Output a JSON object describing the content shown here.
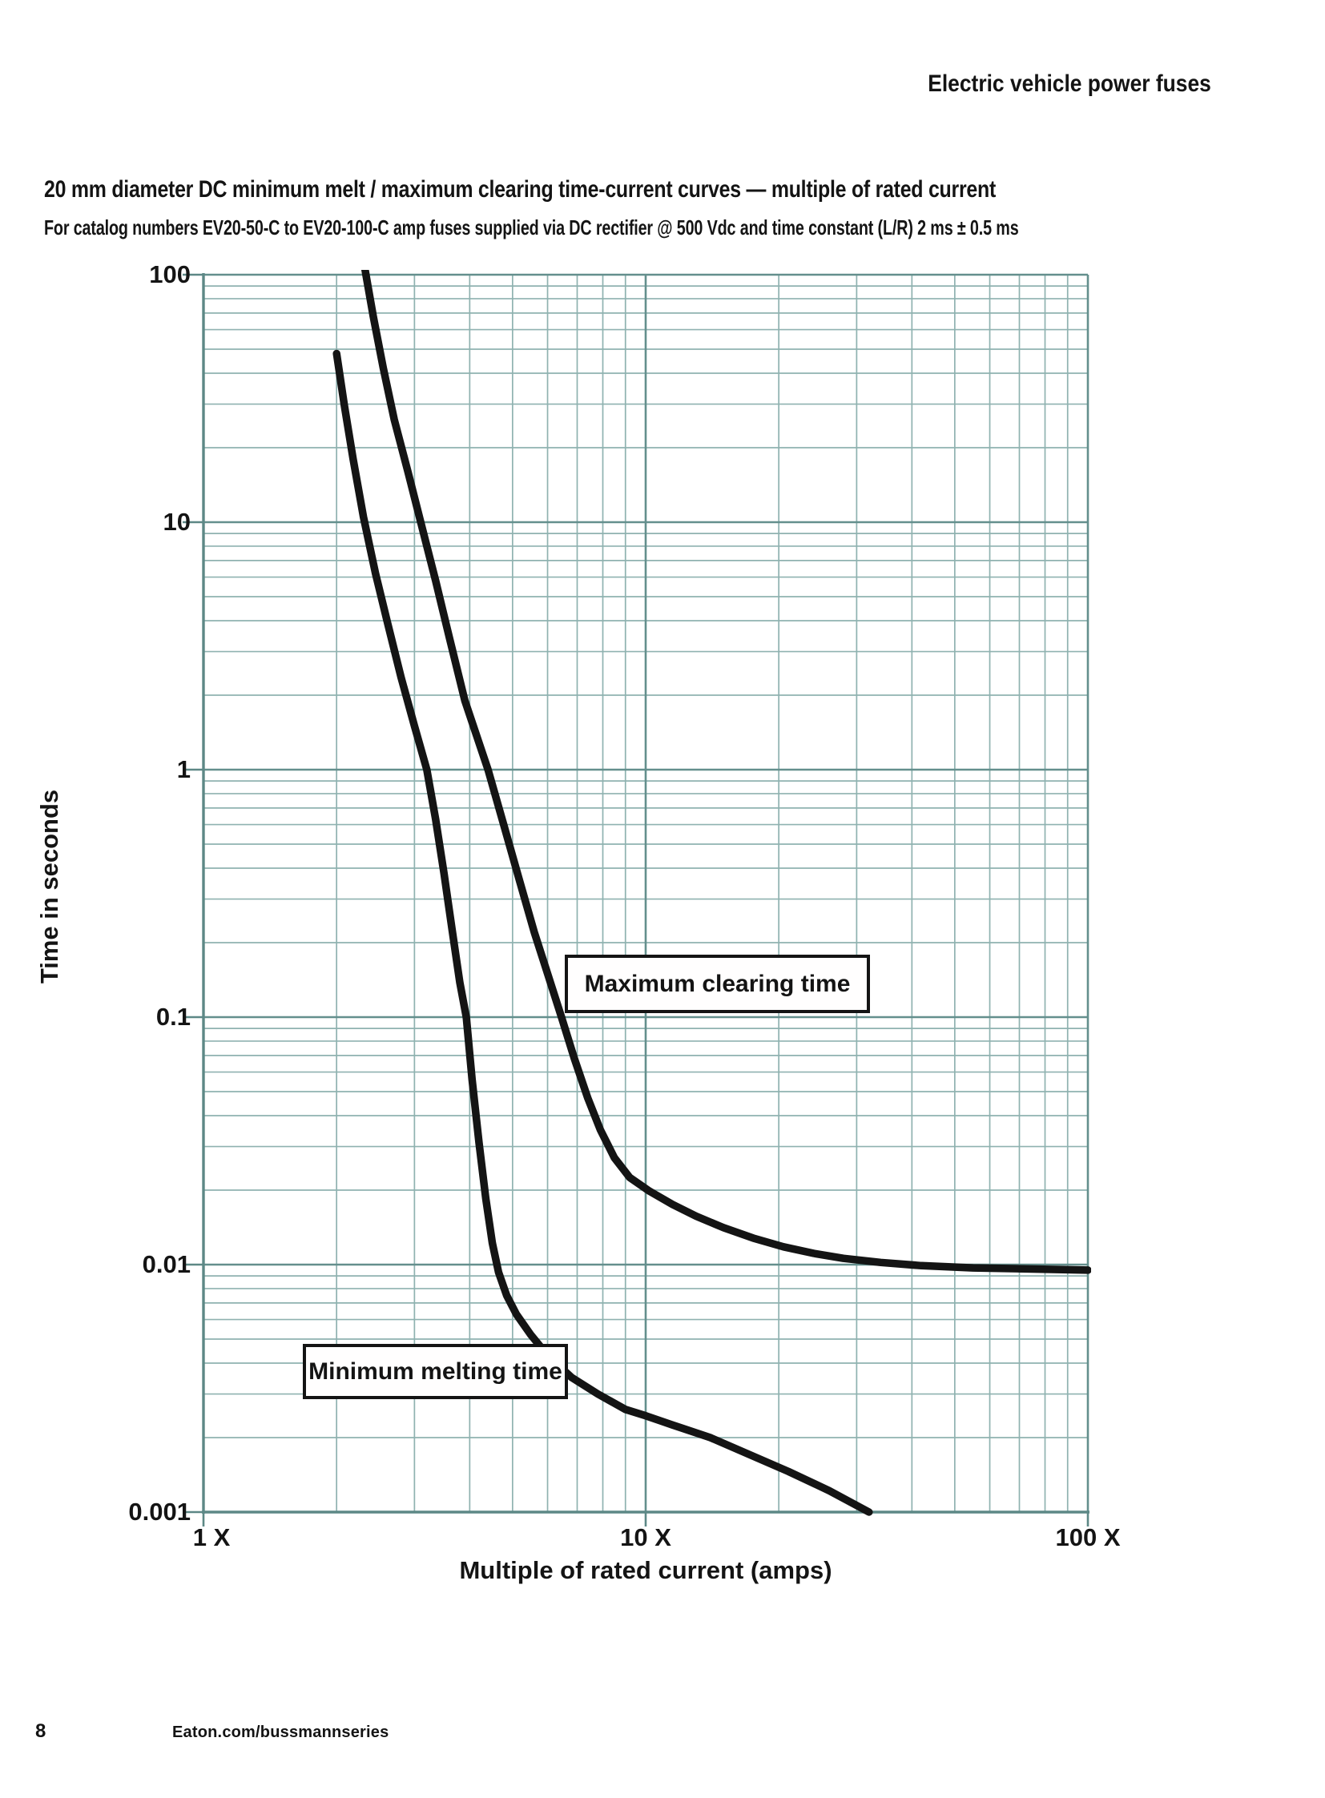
{
  "page": {
    "header": "Electric vehicle power fuses",
    "title": "20 mm diameter DC minimum melt / maximum clearing time-current curves — multiple of rated current",
    "subtitle": "For catalog numbers EV20-50-C to EV20-100-C amp fuses supplied via DC rectifier @ 500 Vdc and time constant (L/R) 2 ms ± 0.5 ms",
    "footer": {
      "page_number": "8",
      "website": "Eaton.com/bussmannseries"
    }
  },
  "chart_data": {
    "type": "line",
    "title": "20 mm diameter DC minimum melt / maximum clearing time-current curves — multiple of rated current",
    "xlabel": "Multiple of rated current (amps)",
    "ylabel": "Time in seconds",
    "x_scale": "log",
    "y_scale": "log",
    "xlim": [
      1,
      100
    ],
    "ylim": [
      0.001,
      100
    ],
    "x_tick_values": [
      1,
      10,
      100
    ],
    "x_tick_labels": [
      "1 X",
      "10 X",
      "100 X"
    ],
    "y_tick_values": [
      100,
      10,
      1,
      0.1,
      0.01,
      0.001
    ],
    "y_tick_labels": [
      "100",
      "10",
      "1",
      "0.1",
      "0.01",
      "0.001"
    ],
    "grid": {
      "on": true,
      "minor_color": "#8fb2b0",
      "major_color": "#648f8d",
      "axis_color": "#5d8886"
    },
    "curve_color": "#141414",
    "series": [
      {
        "name": "Minimum melting time",
        "points": [
          [
            2.0,
            48
          ],
          [
            2.08,
            30
          ],
          [
            2.18,
            18
          ],
          [
            2.3,
            10.5
          ],
          [
            2.45,
            6.2
          ],
          [
            2.6,
            4.0
          ],
          [
            2.8,
            2.35
          ],
          [
            3.0,
            1.5
          ],
          [
            3.2,
            1.0
          ],
          [
            3.35,
            0.63
          ],
          [
            3.5,
            0.38
          ],
          [
            3.65,
            0.225
          ],
          [
            3.8,
            0.138
          ],
          [
            3.93,
            0.1
          ],
          [
            4.05,
            0.056
          ],
          [
            4.2,
            0.031
          ],
          [
            4.35,
            0.0185
          ],
          [
            4.5,
            0.0122
          ],
          [
            4.65,
            0.0093
          ],
          [
            4.85,
            0.0075
          ],
          [
            5.1,
            0.0063
          ],
          [
            5.5,
            0.0052
          ],
          [
            6.0,
            0.0043
          ],
          [
            6.8,
            0.0035
          ],
          [
            7.8,
            0.003
          ],
          [
            9.0,
            0.0026
          ],
          [
            10.0,
            0.00245
          ],
          [
            11.5,
            0.00225
          ],
          [
            14.0,
            0.002
          ],
          [
            17.0,
            0.00172
          ],
          [
            21.0,
            0.00146
          ],
          [
            26.0,
            0.00122
          ],
          [
            32.0,
            0.001
          ]
        ]
      },
      {
        "name": "Maximum clearing time",
        "points": [
          [
            2.29,
            120
          ],
          [
            2.33,
            100
          ],
          [
            2.42,
            68
          ],
          [
            2.55,
            42
          ],
          [
            2.7,
            26
          ],
          [
            2.9,
            16
          ],
          [
            3.1,
            10
          ],
          [
            3.35,
            5.8
          ],
          [
            3.6,
            3.4
          ],
          [
            3.9,
            1.9
          ],
          [
            4.4,
            1.0
          ],
          [
            4.8,
            0.58
          ],
          [
            5.2,
            0.35
          ],
          [
            5.6,
            0.22
          ],
          [
            6.0,
            0.15
          ],
          [
            6.45,
            0.1
          ],
          [
            6.9,
            0.068
          ],
          [
            7.4,
            0.047
          ],
          [
            7.9,
            0.035
          ],
          [
            8.5,
            0.027
          ],
          [
            9.2,
            0.0225
          ],
          [
            10.2,
            0.0198
          ],
          [
            11.5,
            0.0175
          ],
          [
            13.0,
            0.0157
          ],
          [
            15.0,
            0.0141
          ],
          [
            17.5,
            0.0128
          ],
          [
            20.5,
            0.0118
          ],
          [
            24.0,
            0.0111
          ],
          [
            28.0,
            0.0106
          ],
          [
            34.0,
            0.0102
          ],
          [
            42.0,
            0.0099
          ],
          [
            55.0,
            0.0097
          ],
          [
            75.0,
            0.0096
          ],
          [
            100.0,
            0.0095
          ]
        ]
      }
    ]
  }
}
